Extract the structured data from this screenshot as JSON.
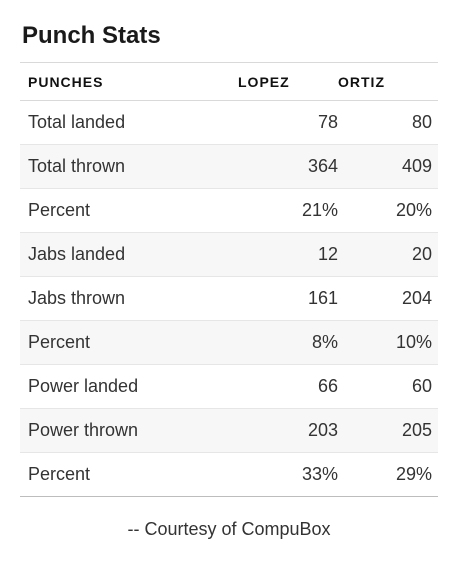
{
  "title": "Punch Stats",
  "table": {
    "headers": [
      "PUNCHES",
      "LOPEZ",
      "ORTIZ"
    ],
    "rows": [
      [
        "Total landed",
        "78",
        "80"
      ],
      [
        "Total thrown",
        "364",
        "409"
      ],
      [
        "Percent",
        "21%",
        "20%"
      ],
      [
        "Jabs landed",
        "12",
        "20"
      ],
      [
        "Jabs thrown",
        "161",
        "204"
      ],
      [
        "Percent",
        "8%",
        "10%"
      ],
      [
        "Power landed",
        "66",
        "60"
      ],
      [
        "Power thrown",
        "203",
        "205"
      ],
      [
        "Percent",
        "33%",
        "29%"
      ]
    ]
  },
  "footer": "-- Courtesy of CompuBox"
}
